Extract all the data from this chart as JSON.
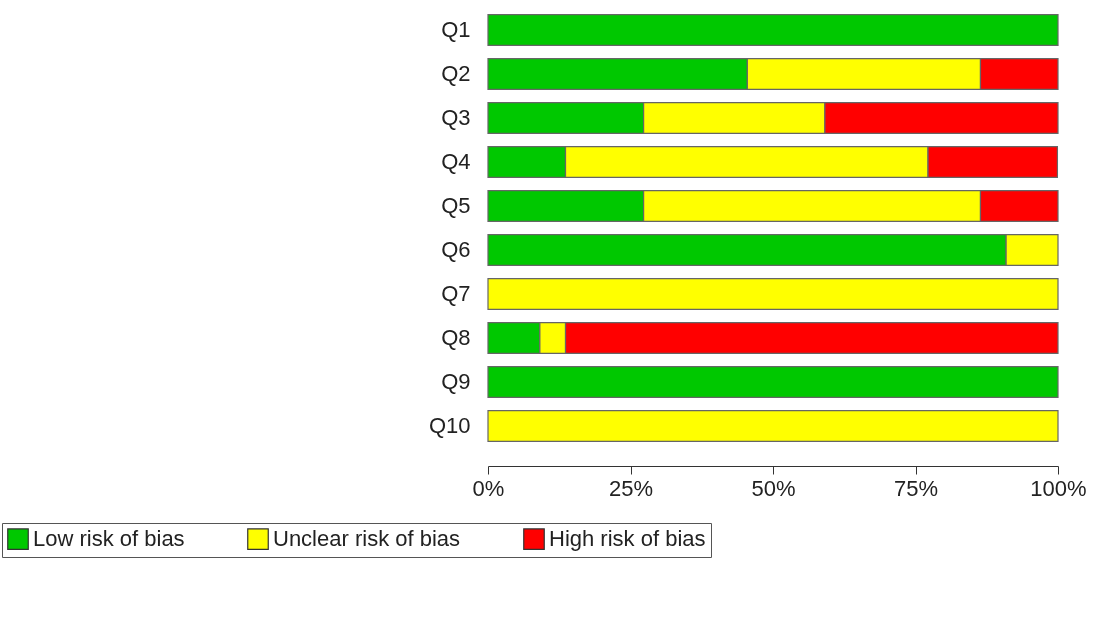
{
  "chart_data": {
    "type": "bar",
    "orientation": "horizontal",
    "stacked": true,
    "categories": [
      "Q1",
      "Q2",
      "Q3",
      "Q4",
      "Q5",
      "Q6",
      "Q7",
      "Q8",
      "Q9",
      "Q10"
    ],
    "series": [
      {
        "name": "Low risk of bias",
        "color": "#00c800",
        "values": [
          100,
          45.5,
          27.3,
          13.6,
          27.3,
          90.9,
          0,
          9.1,
          100,
          0
        ]
      },
      {
        "name": "Unclear risk of bias",
        "color": "#ffff00",
        "values": [
          0,
          40.9,
          31.8,
          63.6,
          59.1,
          9.1,
          100,
          4.5,
          0,
          100
        ]
      },
      {
        "name": "High risk of bias",
        "color": "#ff0000",
        "values": [
          0,
          13.6,
          40.9,
          22.7,
          13.6,
          0,
          0,
          86.4,
          0,
          0
        ]
      }
    ],
    "xlim": [
      0,
      100
    ],
    "xticks": [
      {
        "value": 0,
        "label": "0%"
      },
      {
        "value": 25,
        "label": "25%"
      },
      {
        "value": 50,
        "label": "50%"
      },
      {
        "value": 75,
        "label": "75%"
      },
      {
        "value": 100,
        "label": "100%"
      }
    ],
    "grid": false,
    "legend": "bottom"
  }
}
